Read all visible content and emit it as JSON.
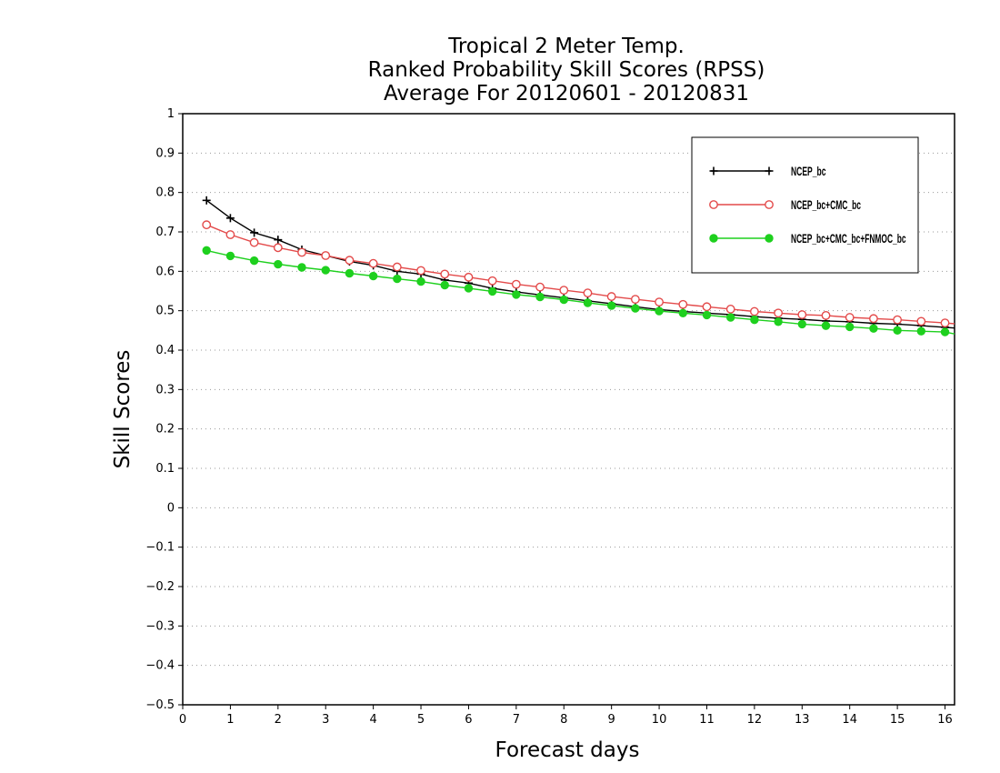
{
  "chart_data": {
    "type": "line",
    "title": [
      "Tropical 2 Meter Temp.",
      "Ranked Probability Skill Scores (RPSS)",
      "Average For 20120601 - 20120831"
    ],
    "xlabel": "Forecast days",
    "ylabel": "Skill Scores",
    "xlim": [
      0,
      16.2
    ],
    "ylim": [
      -0.5,
      1
    ],
    "xticks": [
      "0",
      "1",
      "2",
      "3",
      "4",
      "5",
      "6",
      "7",
      "8",
      "9",
      "10",
      "11",
      "12",
      "13",
      "14",
      "15",
      "16"
    ],
    "yticks": [
      "1",
      "0.9",
      "0.8",
      "0.7",
      "0.6",
      "0.5",
      "0.4",
      "0.3",
      "0.2",
      "0.1",
      "0",
      "−0.1",
      "−0.2",
      "−0.3",
      "−0.4",
      "−0.5"
    ],
    "grid": "horizontal-dotted",
    "legend_position": "top-right",
    "x": [
      0.5,
      1,
      1.5,
      2,
      2.5,
      3,
      3.5,
      4,
      4.5,
      5,
      5.5,
      6,
      6.5,
      7,
      7.5,
      8,
      8.5,
      9,
      9.5,
      10,
      10.5,
      11,
      11.5,
      12,
      12.5,
      13,
      13.5,
      14,
      14.5,
      15,
      15.5,
      16,
      16.2
    ],
    "series": [
      {
        "name": "NCEP_bc",
        "color": "#000000",
        "marker": "plus",
        "values": [
          0.78,
          0.735,
          0.698,
          0.68,
          0.655,
          0.64,
          0.625,
          0.615,
          0.6,
          0.593,
          0.578,
          0.57,
          0.557,
          0.548,
          0.54,
          0.533,
          0.525,
          0.518,
          0.51,
          0.503,
          0.498,
          0.494,
          0.49,
          0.485,
          0.481,
          0.478,
          0.474,
          0.472,
          0.468,
          0.466,
          0.462,
          0.458,
          0.456
        ]
      },
      {
        "name": "NCEP_bc+CMC_bc",
        "color": "#e34a4a",
        "marker": "open-circle",
        "values": [
          0.718,
          0.693,
          0.673,
          0.66,
          0.648,
          0.64,
          0.628,
          0.62,
          0.611,
          0.602,
          0.593,
          0.585,
          0.576,
          0.567,
          0.56,
          0.552,
          0.545,
          0.536,
          0.529,
          0.522,
          0.516,
          0.51,
          0.504,
          0.498,
          0.494,
          0.49,
          0.488,
          0.483,
          0.48,
          0.477,
          0.473,
          0.469,
          0.467
        ]
      },
      {
        "name": "NCEP_bc+CMC_bc+FNMOC_bc",
        "color": "#1ed01e",
        "marker": "filled-circle",
        "values": [
          0.653,
          0.639,
          0.627,
          0.618,
          0.61,
          0.603,
          0.595,
          0.588,
          0.581,
          0.574,
          0.565,
          0.557,
          0.549,
          0.541,
          0.535,
          0.528,
          0.52,
          0.513,
          0.506,
          0.499,
          0.494,
          0.489,
          0.483,
          0.477,
          0.472,
          0.466,
          0.462,
          0.459,
          0.455,
          0.45,
          0.448,
          0.446,
          0.441
        ]
      }
    ]
  }
}
